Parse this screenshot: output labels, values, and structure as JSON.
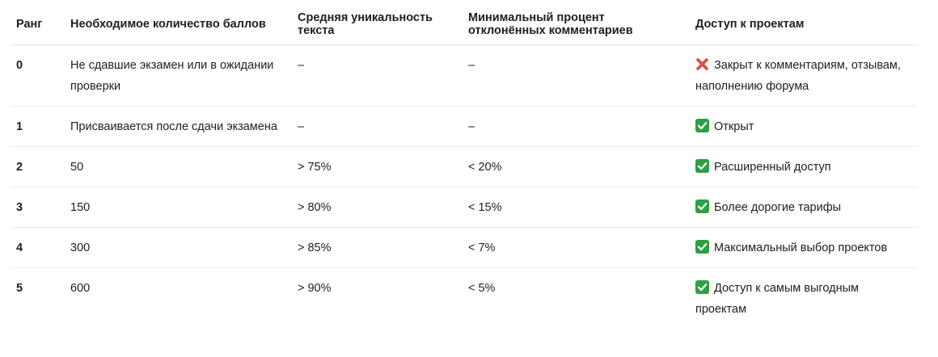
{
  "table": {
    "headers": {
      "rank": "Ранг",
      "points": "Необходимое количество баллов",
      "uniqueness": "Средняя уникальность текста",
      "rejected": "Минимальный процент отклонённых комментариев",
      "access": "Доступ к проектам"
    },
    "rows": [
      {
        "rank": "0",
        "points": "Не сдавшие экзамен или в ожидании проверки",
        "uniqueness": "–",
        "rejected": "–",
        "access_icon": "cross-mark-icon",
        "access": "Закрыт к комментариям, отзывам, наполнению форума"
      },
      {
        "rank": "1",
        "points": "Присваивается после сдачи экзамена",
        "uniqueness": "–",
        "rejected": "–",
        "access_icon": "check-mark-icon",
        "access": "Открыт"
      },
      {
        "rank": "2",
        "points": "50",
        "uniqueness": "> 75%",
        "rejected": "< 20%",
        "access_icon": "check-mark-icon",
        "access": "Расширенный доступ"
      },
      {
        "rank": "3",
        "points": "150",
        "uniqueness": "> 80%",
        "rejected": "< 15%",
        "access_icon": "check-mark-icon",
        "access": "Более дорогие тарифы"
      },
      {
        "rank": "4",
        "points": "300",
        "uniqueness": "> 85%",
        "rejected": "< 7%",
        "access_icon": "check-mark-icon",
        "access": "Максимальный выбор проектов"
      },
      {
        "rank": "5",
        "points": "600",
        "uniqueness": "> 90%",
        "rejected": "< 5%",
        "access_icon": "check-mark-icon",
        "access": "Доступ к самым выгодным проектам"
      }
    ]
  },
  "colors": {
    "check": "#2ea043",
    "cross": "#d93025",
    "text": "#1f1f1f",
    "divider": "#ececec"
  }
}
